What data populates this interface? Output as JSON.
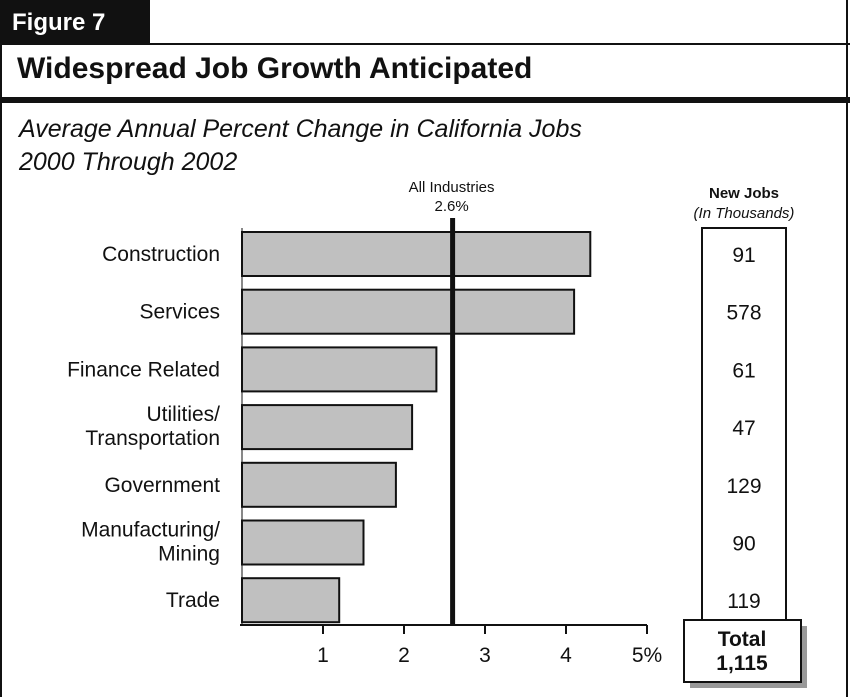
{
  "figure_label": "Figure 7",
  "title": "Widespread Job Growth Anticipated",
  "subtitle_line1": "Average Annual Percent Change in California Jobs",
  "subtitle_line2": "2000 Through 2002",
  "chart_data": {
    "type": "bar",
    "orientation": "horizontal",
    "categories": [
      "Construction",
      "Services",
      "Finance Related",
      "Utilities/ Transportation",
      "Government",
      "Manufacturing/ Mining",
      "Trade"
    ],
    "values": [
      4.3,
      4.1,
      2.4,
      2.1,
      1.9,
      1.5,
      1.2
    ],
    "xlim": [
      0,
      5
    ],
    "xticks": [
      "1",
      "2",
      "3",
      "4",
      "5%"
    ],
    "xtick_values": [
      1,
      2,
      3,
      4,
      5
    ],
    "bar_color": "#c0c0c0",
    "reference_line": {
      "label": "All Industries",
      "value_label": "2.6%",
      "value": 2.6
    },
    "new_jobs": {
      "header": "New Jobs",
      "subheader": "(In Thousands)",
      "values": [
        "91",
        "578",
        "61",
        "47",
        "129",
        "90",
        "119"
      ],
      "total_label": "Total",
      "total_value": "1,115"
    }
  }
}
